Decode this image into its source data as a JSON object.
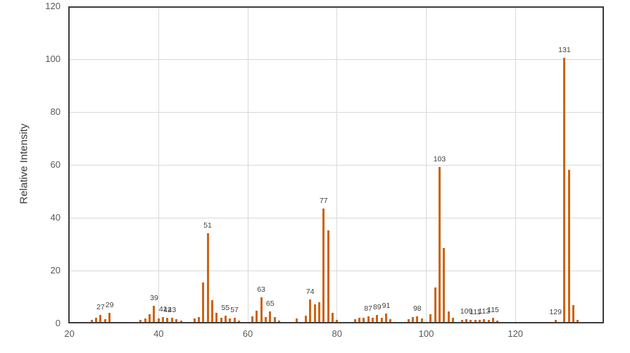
{
  "chart_data": {
    "type": "bar",
    "title": "",
    "xlabel": "",
    "ylabel": "Relative Intensity",
    "xlim": [
      20,
      139.6
    ],
    "ylim": [
      0,
      120
    ],
    "x_ticks": [
      20,
      40,
      60,
      80,
      100,
      120
    ],
    "y_ticks": [
      0,
      20,
      40,
      60,
      80,
      100,
      120
    ],
    "grid": true,
    "legend": "none",
    "bar_color": "#ce6312",
    "axis_border_color": "#3d3d3d",
    "grid_color": "#d9d9d9",
    "tick_label_color": "#595959",
    "peak_label_color": "#404040",
    "points": [
      {
        "mz": 25,
        "intensity": 0.8
      },
      {
        "mz": 26,
        "intensity": 1.6
      },
      {
        "mz": 27,
        "intensity": 2.6,
        "label": "27"
      },
      {
        "mz": 28,
        "intensity": 1.2
      },
      {
        "mz": 29,
        "intensity": 3.4,
        "label": "29"
      },
      {
        "mz": 36,
        "intensity": 0.8
      },
      {
        "mz": 37,
        "intensity": 1.4
      },
      {
        "mz": 38,
        "intensity": 2.9
      },
      {
        "mz": 39,
        "intensity": 6.2,
        "label": "39"
      },
      {
        "mz": 40,
        "intensity": 1.3
      },
      {
        "mz": 41,
        "intensity": 2.0,
        "label": "41"
      },
      {
        "mz": 42,
        "intensity": 1.6,
        "label": "42"
      },
      {
        "mz": 43,
        "intensity": 1.6,
        "label": "43"
      },
      {
        "mz": 44,
        "intensity": 1.1
      },
      {
        "mz": 45,
        "intensity": 0.5
      },
      {
        "mz": 48,
        "intensity": 1.4
      },
      {
        "mz": 49,
        "intensity": 2.0
      },
      {
        "mz": 50,
        "intensity": 15.0
      },
      {
        "mz": 51,
        "intensity": 33.5,
        "label": "51"
      },
      {
        "mz": 52,
        "intensity": 8.4
      },
      {
        "mz": 53,
        "intensity": 3.4
      },
      {
        "mz": 54,
        "intensity": 1.6
      },
      {
        "mz": 55,
        "intensity": 2.4,
        "label": "55"
      },
      {
        "mz": 56,
        "intensity": 1.3
      },
      {
        "mz": 57,
        "intensity": 1.5,
        "label": "57"
      },
      {
        "mz": 58,
        "intensity": 0.5
      },
      {
        "mz": 61,
        "intensity": 2.1
      },
      {
        "mz": 62,
        "intensity": 4.3
      },
      {
        "mz": 63,
        "intensity": 9.4,
        "label": "63"
      },
      {
        "mz": 64,
        "intensity": 1.8
      },
      {
        "mz": 65,
        "intensity": 4.1,
        "label": "65"
      },
      {
        "mz": 66,
        "intensity": 2.0
      },
      {
        "mz": 67,
        "intensity": 0.6
      },
      {
        "mz": 71,
        "intensity": 1.3
      },
      {
        "mz": 73,
        "intensity": 2.5
      },
      {
        "mz": 74,
        "intensity": 8.6,
        "label": "74"
      },
      {
        "mz": 75,
        "intensity": 6.8
      },
      {
        "mz": 76,
        "intensity": 7.6
      },
      {
        "mz": 77,
        "intensity": 43.0,
        "label": "77"
      },
      {
        "mz": 78,
        "intensity": 34.7
      },
      {
        "mz": 79,
        "intensity": 3.5
      },
      {
        "mz": 80,
        "intensity": 0.9
      },
      {
        "mz": 84,
        "intensity": 1.2
      },
      {
        "mz": 85,
        "intensity": 1.7
      },
      {
        "mz": 86,
        "intensity": 1.5
      },
      {
        "mz": 87,
        "intensity": 2.2,
        "label": "87"
      },
      {
        "mz": 88,
        "intensity": 1.5
      },
      {
        "mz": 89,
        "intensity": 2.7,
        "label": "89"
      },
      {
        "mz": 90,
        "intensity": 1.5
      },
      {
        "mz": 91,
        "intensity": 3.2,
        "label": "91"
      },
      {
        "mz": 92,
        "intensity": 1.2
      },
      {
        "mz": 96,
        "intensity": 1.1
      },
      {
        "mz": 97,
        "intensity": 1.8
      },
      {
        "mz": 98,
        "intensity": 2.2,
        "label": "98"
      },
      {
        "mz": 99,
        "intensity": 1.3
      },
      {
        "mz": 101,
        "intensity": 3.0
      },
      {
        "mz": 102,
        "intensity": 13.0
      },
      {
        "mz": 103,
        "intensity": 58.6,
        "label": "103"
      },
      {
        "mz": 104,
        "intensity": 28.0
      },
      {
        "mz": 105,
        "intensity": 4.0
      },
      {
        "mz": 106,
        "intensity": 1.6
      },
      {
        "mz": 108,
        "intensity": 0.8
      },
      {
        "mz": 109,
        "intensity": 1.0,
        "label": "109"
      },
      {
        "mz": 110,
        "intensity": 0.8
      },
      {
        "mz": 111,
        "intensity": 0.8,
        "label": "111"
      },
      {
        "mz": 112,
        "intensity": 0.9
      },
      {
        "mz": 113,
        "intensity": 1.2,
        "label": "113"
      },
      {
        "mz": 114,
        "intensity": 0.9
      },
      {
        "mz": 115,
        "intensity": 1.5,
        "label": "115"
      },
      {
        "mz": 116,
        "intensity": 0.6
      },
      {
        "mz": 129,
        "intensity": 0.9,
        "label": "129"
      },
      {
        "mz": 131,
        "intensity": 100.0,
        "label": "131"
      },
      {
        "mz": 132,
        "intensity": 57.5
      },
      {
        "mz": 133,
        "intensity": 6.5
      },
      {
        "mz": 134,
        "intensity": 0.8
      }
    ]
  }
}
